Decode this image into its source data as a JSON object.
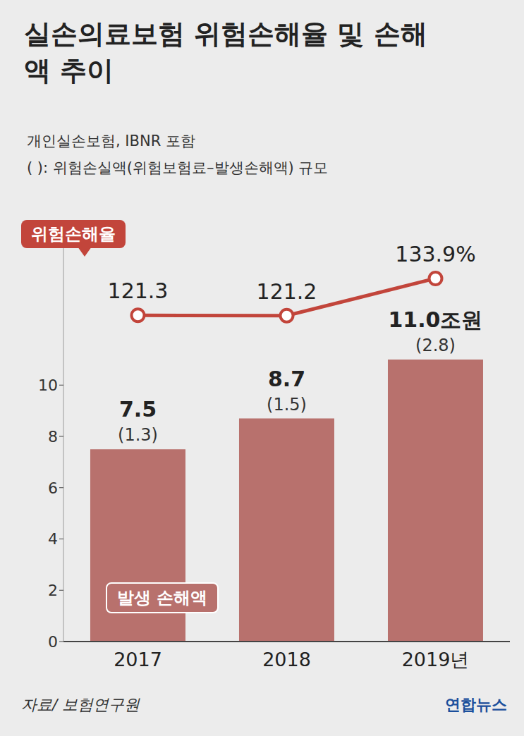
{
  "chart_data": {
    "type": "bar",
    "title": "실손의료보험 위험손해율 및 손해액 추이",
    "subtitle": [
      "개인실손보험, IBNR 포함",
      "( ): 위험손실액(위험보험료–발생손해액) 규모"
    ],
    "source": "자료/ 보험연구원",
    "credit": "연합뉴스",
    "categories": [
      "2017",
      "2018",
      "2019년"
    ],
    "series": [
      {
        "name": "발생 손해액",
        "type": "bar",
        "color": "#b8716d",
        "values": [
          7.5,
          8.7,
          11.0
        ],
        "value_labels": [
          "7.5",
          "8.7",
          "11.0조원"
        ],
        "losses": [
          1.3,
          1.5,
          2.8
        ],
        "loss_labels": [
          "(1.3)",
          "(1.5)",
          "(2.8)"
        ]
      },
      {
        "name": "위험손해율",
        "type": "line",
        "axis": "y2",
        "color": "#c2453b",
        "marker": "circle",
        "values": [
          121.3,
          121.2,
          133.9
        ],
        "value_labels": [
          "121.3",
          "121.2",
          "133.9%"
        ]
      }
    ],
    "ylim": [
      0,
      16
    ],
    "yticks": [
      0,
      2,
      4,
      6,
      8,
      10
    ],
    "y2lim": [
      10,
      150
    ],
    "grid": false,
    "data_labels": true
  }
}
